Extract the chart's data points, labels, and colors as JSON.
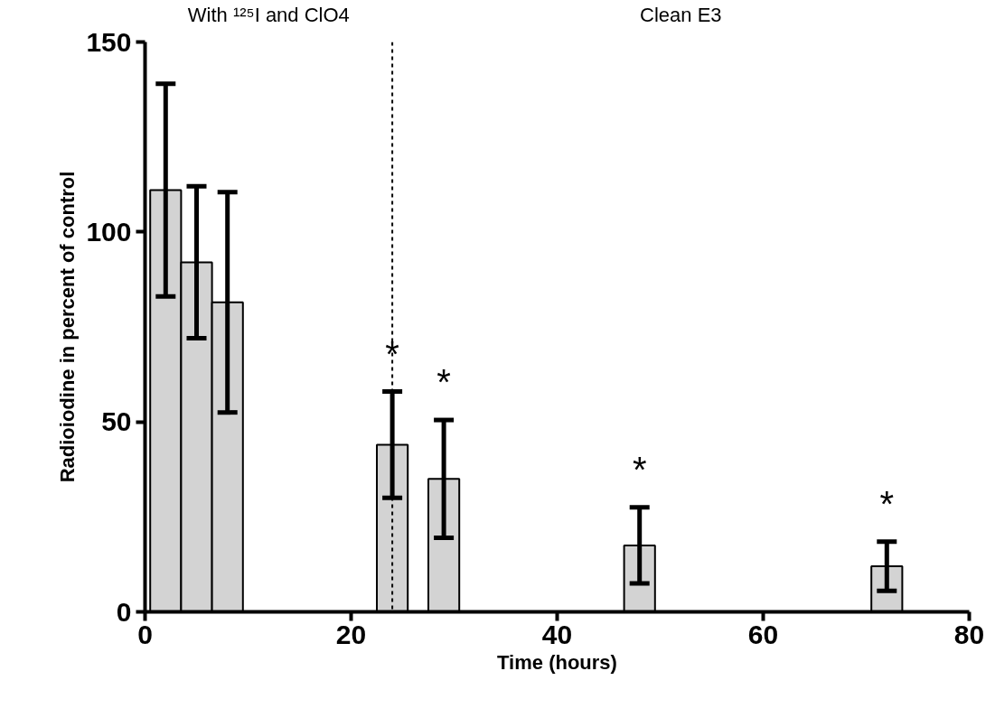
{
  "chart_data": {
    "type": "bar",
    "xlabel": "Time (hours)",
    "ylabel": "Radioiodine in percent of control",
    "x": [
      2,
      5,
      8,
      24,
      29,
      48,
      72
    ],
    "series": [
      {
        "color": "#d3d3d3",
        "values": [
          111,
          92,
          81.5,
          44,
          35,
          17.5,
          12
        ],
        "errors": [
          28,
          20,
          29,
          14,
          15.5,
          10,
          6.5
        ],
        "value_labels": [
          null,
          null,
          null,
          "*",
          "*",
          "*",
          "*"
        ]
      }
    ],
    "xlim": [
      0,
      80
    ],
    "xticks": [
      0,
      20,
      40,
      60,
      80
    ],
    "ylim": [
      0,
      150
    ],
    "yticks": [
      0,
      50,
      100,
      150
    ],
    "grid": false,
    "ref_lines": [
      {
        "axis": "x",
        "value": 24,
        "line_style": "dashed",
        "color": "#000000"
      }
    ],
    "annotations": [
      "With ¹²⁵I and ClO4",
      "Clean E3"
    ]
  }
}
